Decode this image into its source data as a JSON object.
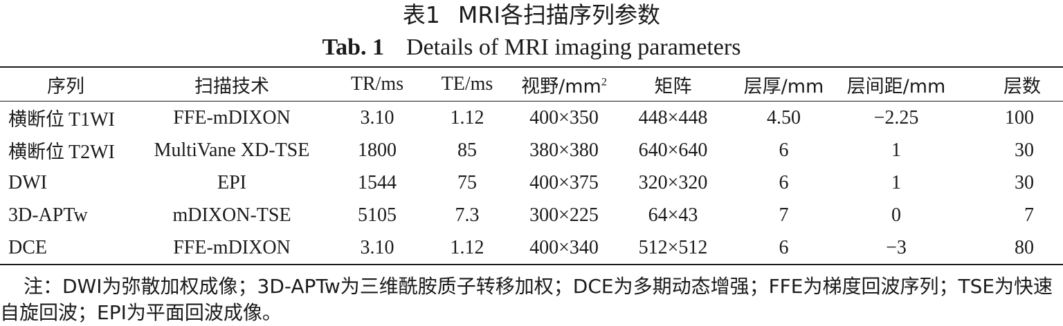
{
  "caption": {
    "cn_number": "表1",
    "cn_title": "MRI各扫描序列参数",
    "en_number": "Tab. 1",
    "en_title": "Details of MRI imaging parameters"
  },
  "table": {
    "headers": [
      "序列",
      "扫描技术",
      "TR/ms",
      "TE/ms",
      "视野/mm",
      "矩阵",
      "层厚/mm",
      "层间距/mm",
      "层数"
    ],
    "fov_header_sup": "2",
    "rows": [
      {
        "seq_cn": "横断位",
        "seq_en": "T1WI",
        "tech": "FFE-mDIXON",
        "tr": "3.10",
        "te": "1.12",
        "fov": "400×350",
        "matrix": "448×448",
        "thickness": "4.50",
        "gap": "−2.25",
        "slices": "100"
      },
      {
        "seq_cn": "横断位",
        "seq_en": "T2WI",
        "tech": "MultiVane XD-TSE",
        "tr": "1800",
        "te": "85",
        "fov": "380×380",
        "matrix": "640×640",
        "thickness": "6",
        "gap": "1",
        "slices": "30"
      },
      {
        "seq_cn": "",
        "seq_en": "DWI",
        "tech": "EPI",
        "tr": "1544",
        "te": "75",
        "fov": "400×375",
        "matrix": "320×320",
        "thickness": "6",
        "gap": "1",
        "slices": "30"
      },
      {
        "seq_cn": "",
        "seq_en": "3D-APTw",
        "tech": "mDIXON-TSE",
        "tr": "5105",
        "te": "7.3",
        "fov": "300×225",
        "matrix": "64×43",
        "thickness": "7",
        "gap": "0",
        "slices": "7"
      },
      {
        "seq_cn": "",
        "seq_en": "DCE",
        "tech": "FFE-mDIXON",
        "tr": "3.10",
        "te": "1.12",
        "fov": "400×340",
        "matrix": "512×512",
        "thickness": "6",
        "gap": "−3",
        "slices": "80"
      }
    ]
  },
  "note": "注：DWI为弥散加权成像；3D-APTw为三维酰胺质子转移加权；DCE为多期动态增强；FFE为梯度回波序列；TSE为快速自旋回波；EPI为平面回波成像。"
}
